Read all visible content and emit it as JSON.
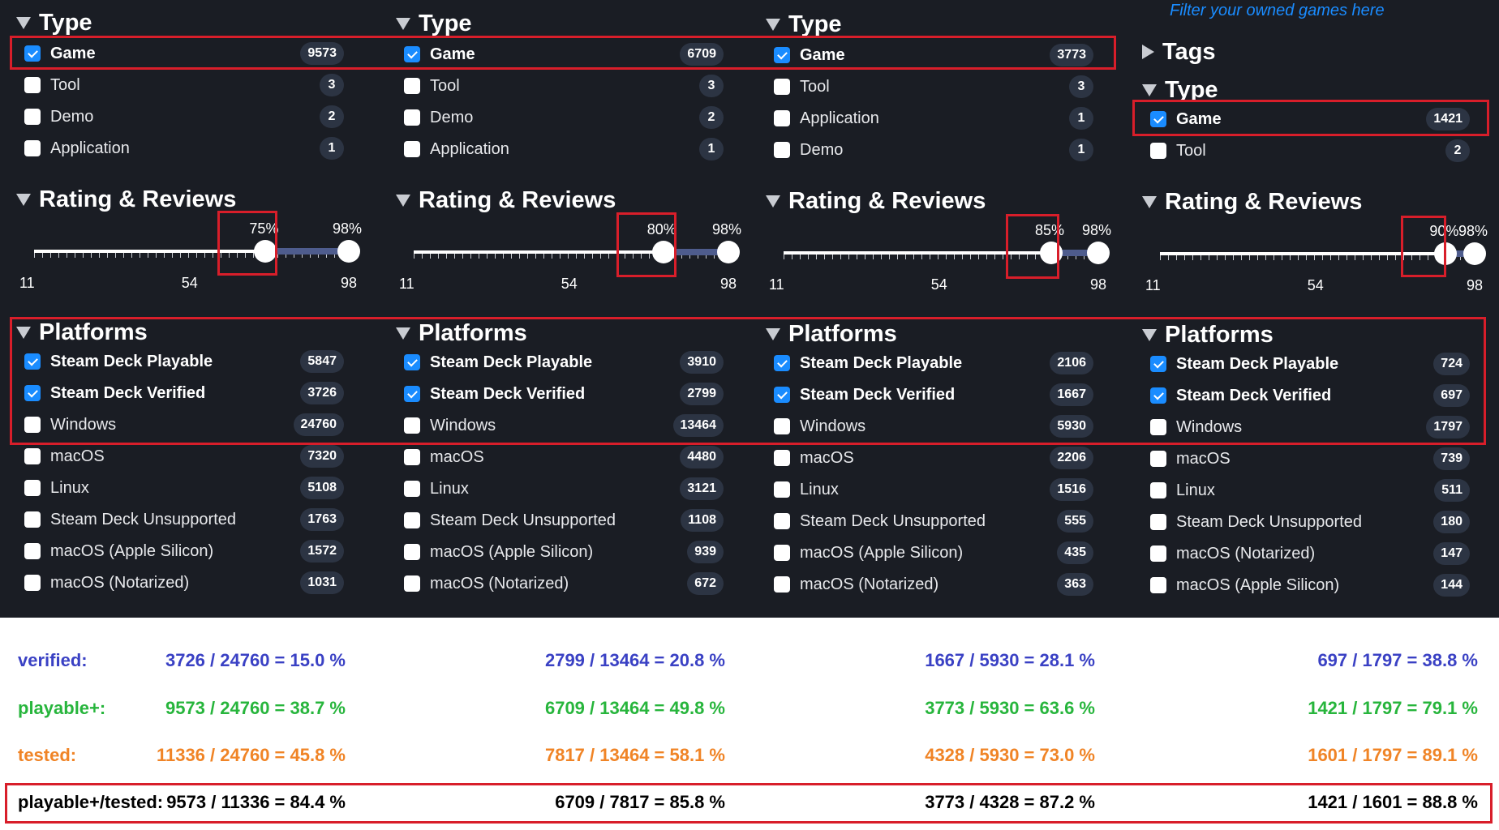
{
  "filter_hint": "Filter your owned games here",
  "tags_title": "Tags",
  "type_title": "Type",
  "rating_title": "Rating & Reviews",
  "platforms_title": "Platforms",
  "colors": {
    "checkbox_on": "#1a8cff",
    "highlight_box": "#d81e2a",
    "verified": "#3a41c4",
    "playable": "#27b53c",
    "tested": "#f08426"
  },
  "columns": [
    {
      "type": [
        {
          "label": "Game",
          "count": "9573",
          "checked": true
        },
        {
          "label": "Tool",
          "count": "3",
          "checked": false
        },
        {
          "label": "Demo",
          "count": "2",
          "checked": false
        },
        {
          "label": "Application",
          "count": "1",
          "checked": false
        }
      ],
      "rating": {
        "min": 11,
        "max": 98,
        "selected_low": 75,
        "selected_high": 98,
        "low_label": "75%",
        "high_label": "98%",
        "axis": [
          "11",
          "54",
          "98"
        ]
      },
      "platforms": [
        {
          "label": "Steam Deck Playable",
          "count": "5847",
          "checked": true
        },
        {
          "label": "Steam Deck Verified",
          "count": "3726",
          "checked": true
        },
        {
          "label": "Windows",
          "count": "24760",
          "checked": false
        },
        {
          "label": "macOS",
          "count": "7320",
          "checked": false
        },
        {
          "label": "Linux",
          "count": "5108",
          "checked": false
        },
        {
          "label": "Steam Deck Unsupported",
          "count": "1763",
          "checked": false
        },
        {
          "label": "macOS (Apple Silicon)",
          "count": "1572",
          "checked": false
        },
        {
          "label": "macOS (Notarized)",
          "count": "1031",
          "checked": false
        }
      ],
      "stats": {
        "verified": "3726 / 24760 = 15.0 %",
        "playable": "9573 / 24760 = 38.7 %",
        "tested": "11336 / 24760 = 45.8 %",
        "ratio": "9573 / 11336 = 84.4 %"
      }
    },
    {
      "type": [
        {
          "label": "Game",
          "count": "6709",
          "checked": true
        },
        {
          "label": "Tool",
          "count": "3",
          "checked": false
        },
        {
          "label": "Demo",
          "count": "2",
          "checked": false
        },
        {
          "label": "Application",
          "count": "1",
          "checked": false
        }
      ],
      "rating": {
        "min": 11,
        "max": 98,
        "selected_low": 80,
        "selected_high": 98,
        "low_label": "80%",
        "high_label": "98%",
        "axis": [
          "11",
          "54",
          "98"
        ]
      },
      "platforms": [
        {
          "label": "Steam Deck Playable",
          "count": "3910",
          "checked": true
        },
        {
          "label": "Steam Deck Verified",
          "count": "2799",
          "checked": true
        },
        {
          "label": "Windows",
          "count": "13464",
          "checked": false
        },
        {
          "label": "macOS",
          "count": "4480",
          "checked": false
        },
        {
          "label": "Linux",
          "count": "3121",
          "checked": false
        },
        {
          "label": "Steam Deck Unsupported",
          "count": "1108",
          "checked": false
        },
        {
          "label": "macOS (Apple Silicon)",
          "count": "939",
          "checked": false
        },
        {
          "label": "macOS (Notarized)",
          "count": "672",
          "checked": false
        }
      ],
      "stats": {
        "verified": "2799 / 13464 = 20.8 %",
        "playable": "6709 / 13464 = 49.8 %",
        "tested": "7817 / 13464 = 58.1 %",
        "ratio": "6709 / 7817 = 85.8 %"
      }
    },
    {
      "type": [
        {
          "label": "Game",
          "count": "3773",
          "checked": true
        },
        {
          "label": "Tool",
          "count": "3",
          "checked": false
        },
        {
          "label": "Application",
          "count": "1",
          "checked": false
        },
        {
          "label": "Demo",
          "count": "1",
          "checked": false
        }
      ],
      "rating": {
        "min": 11,
        "max": 98,
        "selected_low": 85,
        "selected_high": 98,
        "low_label": "85%",
        "high_label": "98%",
        "axis": [
          "11",
          "54",
          "98"
        ]
      },
      "platforms": [
        {
          "label": "Steam Deck Playable",
          "count": "2106",
          "checked": true
        },
        {
          "label": "Steam Deck Verified",
          "count": "1667",
          "checked": true
        },
        {
          "label": "Windows",
          "count": "5930",
          "checked": false
        },
        {
          "label": "macOS",
          "count": "2206",
          "checked": false
        },
        {
          "label": "Linux",
          "count": "1516",
          "checked": false
        },
        {
          "label": "Steam Deck Unsupported",
          "count": "555",
          "checked": false
        },
        {
          "label": "macOS (Apple Silicon)",
          "count": "435",
          "checked": false
        },
        {
          "label": "macOS (Notarized)",
          "count": "363",
          "checked": false
        }
      ],
      "stats": {
        "verified": "1667 / 5930 = 28.1 %",
        "playable": "3773 / 5930 = 63.6 %",
        "tested": "4328 / 5930 = 73.0 %",
        "ratio": "3773 / 4328 = 87.2 %"
      }
    },
    {
      "type": [
        {
          "label": "Game",
          "count": "1421",
          "checked": true
        },
        {
          "label": "Tool",
          "count": "2",
          "checked": false
        }
      ],
      "rating": {
        "min": 11,
        "max": 98,
        "selected_low": 90,
        "selected_high": 98,
        "low_label": "90%",
        "high_label": "98%",
        "axis": [
          "11",
          "54",
          "98"
        ]
      },
      "platforms": [
        {
          "label": "Steam Deck Playable",
          "count": "724",
          "checked": true
        },
        {
          "label": "Steam Deck Verified",
          "count": "697",
          "checked": true
        },
        {
          "label": "Windows",
          "count": "1797",
          "checked": false
        },
        {
          "label": "macOS",
          "count": "739",
          "checked": false
        },
        {
          "label": "Linux",
          "count": "511",
          "checked": false
        },
        {
          "label": "Steam Deck Unsupported",
          "count": "180",
          "checked": false
        },
        {
          "label": "macOS (Notarized)",
          "count": "147",
          "checked": false
        },
        {
          "label": "macOS (Apple Silicon)",
          "count": "144",
          "checked": false
        }
      ],
      "stats": {
        "verified": "697 / 1797 = 38.8 %",
        "playable": "1421 / 1797 = 79.1 %",
        "tested": "1601 / 1797 = 89.1 %",
        "ratio": "1421 / 1601 = 88.8 %"
      }
    }
  ],
  "stat_labels": {
    "verified": "verified:",
    "playable": "playable+:",
    "tested": "tested:",
    "ratio": "playable+/tested:"
  }
}
